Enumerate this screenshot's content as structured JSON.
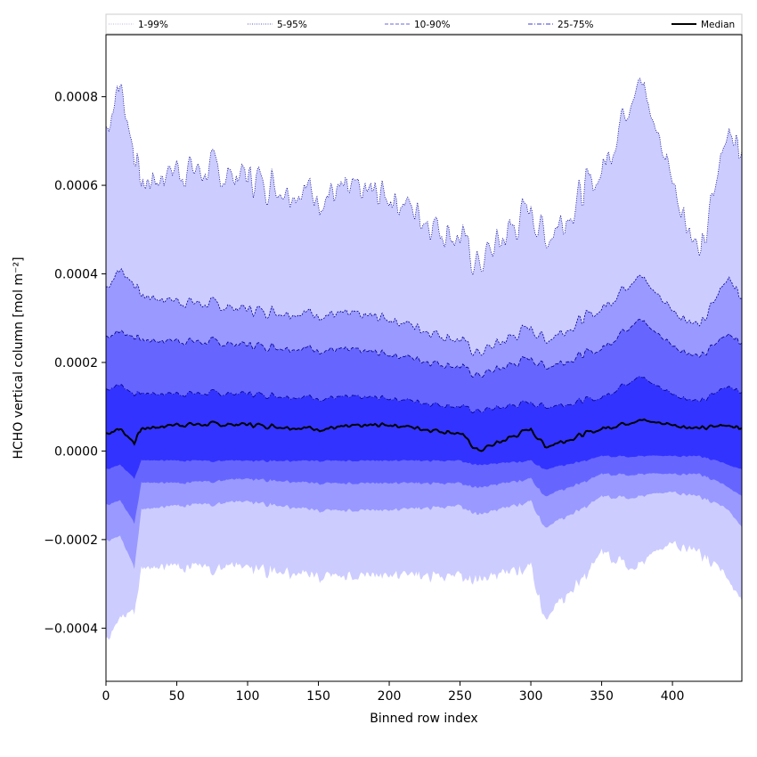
{
  "chart_data": {
    "type": "area",
    "xlabel": "Binned row index",
    "ylabel": "HCHO vertical column [mol m⁻²]",
    "xlim": [
      0,
      449
    ],
    "ylim": [
      -0.00052,
      0.00094
    ],
    "x_ticks": [
      0,
      50,
      100,
      150,
      200,
      250,
      300,
      350,
      400
    ],
    "y_ticks": [
      -0.0004,
      -0.0002,
      0.0,
      0.0002,
      0.0004,
      0.0006,
      0.0008
    ],
    "y_tick_labels": [
      "−0.0004",
      "−0.0002",
      "0.0000",
      "0.0002",
      "0.0004",
      "0.0006",
      "0.0008"
    ],
    "grid": false,
    "legend_position": "top (above plot, horizontal)",
    "legend": [
      {
        "label": "1-99%",
        "style": "dotted",
        "color": "#b8b8e0"
      },
      {
        "label": "5-95%",
        "style": "dotted",
        "color": "#5a5ac8"
      },
      {
        "label": "10-90%",
        "style": "dashed",
        "color": "#6a6ad8"
      },
      {
        "label": "25-75%",
        "style": "dashdot",
        "color": "#3c3cd0"
      },
      {
        "label": "Median",
        "style": "solid",
        "color": "#000000"
      }
    ],
    "colors": {
      "band_1_99": "#ccccff",
      "band_5_95": "#9999ff",
      "band_10_90": "#6666ff",
      "band_25_75": "#3333ff",
      "median": "#000000",
      "percentile_lines": "#00008b"
    },
    "sample_x": [
      0,
      10,
      20,
      25,
      50,
      100,
      150,
      200,
      250,
      263,
      300,
      310,
      350,
      375,
      400,
      420,
      440,
      449
    ],
    "series": [
      {
        "name": "1-99%",
        "upper": [
          0.00073,
          0.00083,
          0.00068,
          0.0006,
          0.00064,
          0.00062,
          0.00058,
          0.00058,
          0.00048,
          0.00042,
          0.00055,
          0.00048,
          0.00063,
          0.00085,
          0.00062,
          0.00043,
          0.00075,
          0.00066
        ],
        "lower": [
          -0.00042,
          -0.00037,
          -0.00035,
          -0.00026,
          -0.00025,
          -0.00025,
          -0.00027,
          -0.00027,
          -0.00027,
          -0.00028,
          -0.00025,
          -0.00037,
          -0.00022,
          -0.00025,
          -0.0002,
          -0.00022,
          -0.00028,
          -0.00033
        ]
      },
      {
        "name": "5-95%",
        "upper": [
          0.00037,
          0.00041,
          0.00038,
          0.00035,
          0.00034,
          0.00032,
          0.00031,
          0.0003,
          0.00025,
          0.00022,
          0.00028,
          0.00025,
          0.00032,
          0.0004,
          0.00032,
          0.00028,
          0.0004,
          0.00034
        ],
        "lower": [
          -0.0002,
          -0.00019,
          -0.00026,
          -0.00013,
          -0.00012,
          -0.00011,
          -0.00013,
          -0.00013,
          -0.00012,
          -0.00014,
          -0.00011,
          -0.00017,
          -0.0001,
          -0.0001,
          -9e-05,
          -0.0001,
          -0.00013,
          -0.00017
        ]
      },
      {
        "name": "10-90%",
        "upper": [
          0.00026,
          0.00027,
          0.00026,
          0.00025,
          0.00025,
          0.00024,
          0.00023,
          0.00022,
          0.00019,
          0.00017,
          0.00021,
          0.00019,
          0.00023,
          0.0003,
          0.00024,
          0.00021,
          0.00027,
          0.00024
        ],
        "lower": [
          -0.00012,
          -0.00011,
          -0.00016,
          -7e-05,
          -7e-05,
          -6e-05,
          -7e-05,
          -7e-05,
          -7e-05,
          -8e-05,
          -6e-05,
          -0.0001,
          -5e-05,
          -5e-05,
          -5e-05,
          -5e-05,
          -8e-05,
          -0.0001
        ]
      },
      {
        "name": "25-75%",
        "upper": [
          0.00014,
          0.00015,
          0.00013,
          0.00013,
          0.00013,
          0.00013,
          0.00012,
          0.00012,
          0.0001,
          9e-05,
          0.00011,
          0.0001,
          0.00012,
          0.00017,
          0.00013,
          0.00011,
          0.00015,
          0.00013
        ],
        "lower": [
          -4e-05,
          -3e-05,
          -6e-05,
          -2e-05,
          -2e-05,
          -2e-05,
          -2e-05,
          -2e-05,
          -2e-05,
          -3e-05,
          -2e-05,
          -4e-05,
          -1e-05,
          -1e-05,
          -1e-05,
          -1e-05,
          -3e-05,
          -4e-05
        ]
      },
      {
        "name": "Median",
        "values": [
          4e-05,
          5e-05,
          2e-05,
          5e-05,
          6e-05,
          6e-05,
          5e-05,
          6e-05,
          4e-05,
          0.0,
          5e-05,
          1e-05,
          5e-05,
          7e-05,
          6e-05,
          5e-05,
          6e-05,
          5e-05
        ]
      }
    ]
  }
}
